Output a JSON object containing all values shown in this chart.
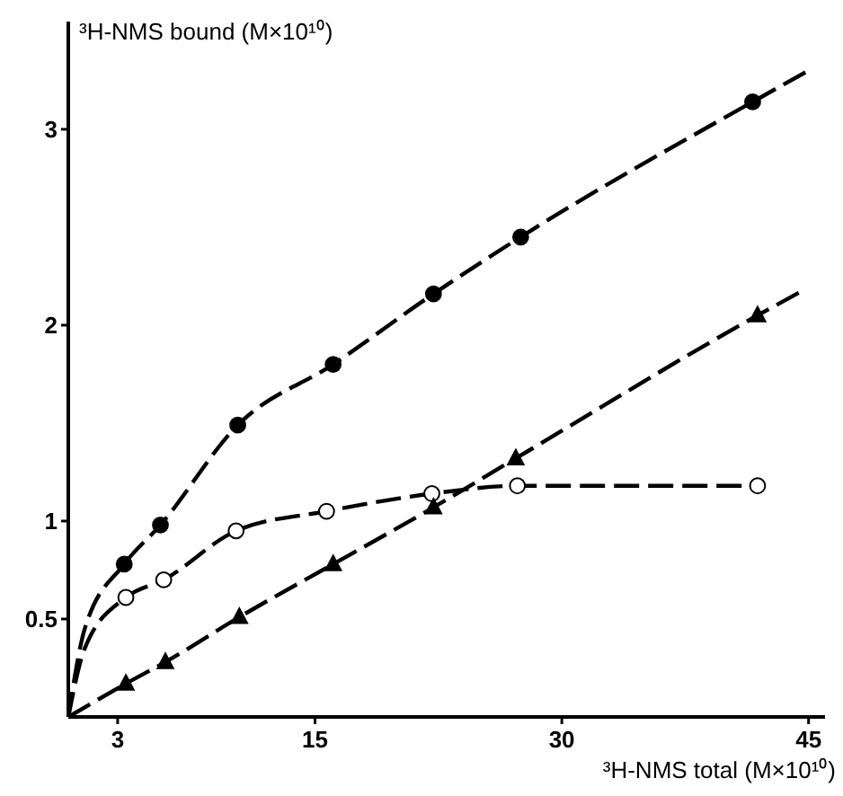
{
  "chart_data": {
    "type": "scatter",
    "xlabel": "³H-NMS total (M×10¹⁰)",
    "ylabel": "³H-NMS bound (M×10¹⁰)",
    "xlim": [
      0,
      46
    ],
    "ylim": [
      0,
      3.55
    ],
    "xticks": [
      3,
      15,
      30,
      45
    ],
    "yticks": [
      0.5,
      1,
      2,
      3
    ],
    "grid": false,
    "series": [
      {
        "type": "line",
        "line_style": "dashed",
        "color": "#000000",
        "x": [
          0,
          1,
          3.4,
          5.6,
          10.3,
          16.1,
          22.2,
          27.5,
          41.6,
          45
        ],
        "values": [
          0,
          0.45,
          0.78,
          0.98,
          1.49,
          1.8,
          2.16,
          2.45,
          3.14,
          3.3
        ]
      },
      {
        "type": "line",
        "line_style": "dashed",
        "color": "#000000",
        "x": [
          0,
          1,
          3.5,
          5.8,
          10.2,
          15.7,
          22.1,
          27.3,
          41.9
        ],
        "values": [
          0,
          0.35,
          0.61,
          0.7,
          0.95,
          1.05,
          1.14,
          1.18,
          1.18
        ]
      },
      {
        "type": "line",
        "line_style": "dashed",
        "color": "#000000",
        "x": [
          0,
          3.5,
          5.9,
          10.4,
          16.1,
          22.2,
          27.2,
          41.9,
          44.5
        ],
        "values": [
          0,
          0.17,
          0.28,
          0.51,
          0.78,
          1.07,
          1.32,
          2.05,
          2.17
        ]
      },
      {
        "marker": "circle",
        "color": "#000000",
        "x": [
          3.4,
          5.6,
          10.3,
          16.1,
          22.2,
          27.5,
          41.6
        ],
        "values": [
          0.78,
          0.98,
          1.49,
          1.8,
          2.16,
          2.45,
          3.14
        ]
      },
      {
        "marker": "circle",
        "color": "#ffffff",
        "x": [
          3.5,
          5.8,
          10.2,
          15.7,
          22.1,
          27.3,
          41.9
        ],
        "values": [
          0.61,
          0.7,
          0.95,
          1.05,
          1.14,
          1.18,
          1.18
        ]
      },
      {
        "marker": "triangle",
        "color": "#000000",
        "x": [
          3.5,
          5.9,
          10.4,
          16.1,
          22.2,
          27.2,
          41.9
        ],
        "values": [
          0.17,
          0.28,
          0.51,
          0.78,
          1.07,
          1.32,
          2.05
        ]
      }
    ]
  }
}
